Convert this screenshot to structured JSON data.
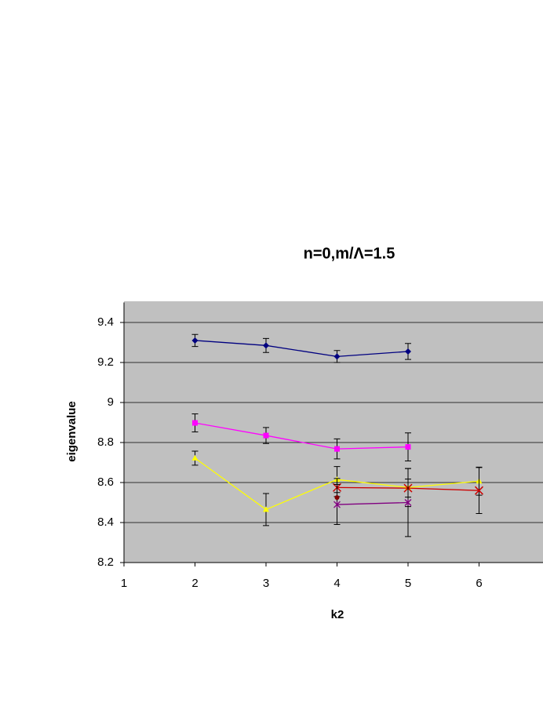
{
  "chart_data": {
    "type": "line",
    "title": "n=0,m/Λ=1.5",
    "x_label": "k2",
    "y_label": "eigenvalue",
    "xlim": [
      1,
      7
    ],
    "xticks": [
      1,
      2,
      3,
      4,
      5,
      6
    ],
    "ylim": [
      8.2,
      9.5
    ],
    "yticks": [
      8.2,
      8.4,
      8.6,
      8.8,
      9,
      9.2,
      9.4
    ],
    "grid": true,
    "series": [
      {
        "color": "#000080",
        "marker": "diamond",
        "x": [
          2,
          3,
          4,
          5
        ],
        "values": [
          9.31,
          9.285,
          9.23,
          9.255
        ],
        "errors": [
          0.03,
          0.035,
          0.03,
          0.04
        ]
      },
      {
        "color": "#ff00ff",
        "marker": "square",
        "x": [
          2,
          3,
          4,
          5
        ],
        "values": [
          8.898,
          8.835,
          8.768,
          8.778
        ],
        "errors": [
          0.045,
          0.04,
          0.05,
          0.07
        ]
      },
      {
        "color": "#ffff00",
        "marker": "triangle",
        "x": [
          2,
          3,
          4,
          5,
          6
        ],
        "values": [
          8.722,
          8.465,
          8.615,
          8.575,
          8.607
        ],
        "errors": [
          0.035,
          0.08,
          0.065,
          0.095,
          0.07
        ]
      },
      {
        "color": "#cc0000",
        "marker": "x",
        "x": [
          4,
          5,
          6
        ],
        "values": [
          8.575,
          8.572,
          8.56
        ],
        "errors": [
          0.045,
          0.045,
          0.115
        ]
      },
      {
        "color": "#800080",
        "marker": "star",
        "x": [
          4,
          5
        ],
        "values": [
          8.49,
          8.5
        ],
        "errors": [
          0.1,
          0.17
        ]
      },
      {
        "color": "#800000",
        "marker": "circle",
        "x": [
          4
        ],
        "values": [
          8.525
        ],
        "errors": [
          0
        ]
      }
    ]
  }
}
